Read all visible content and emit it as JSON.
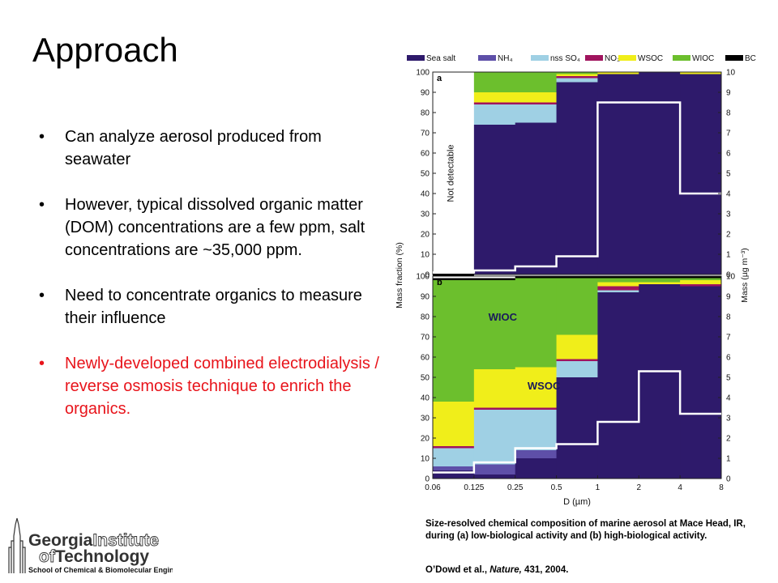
{
  "slide": {
    "title": "Approach",
    "bullets": [
      {
        "text": "Can analyze aerosol produced from seawater",
        "color": "#000000"
      },
      {
        "text": "However, typical dissolved organic matter (DOM) concentrations are a few ppm, salt concentrations are ~35,000 ppm.",
        "color": "#000000"
      },
      {
        "text": "Need to concentrate organics to measure their influence",
        "color": "#000000"
      },
      {
        "text": "Newly-developed combined electrodialysis / reverse osmosis technique to enrich the organics.",
        "color": "#e8141b"
      }
    ],
    "bullet_glyph": "•",
    "caption": "Size-resolved chemical composition of marine aerosol at Mace Head, IR, during (a) low-biological activity and (b) high-biological activity.",
    "citation": {
      "authors": "O’Dowd et al., ",
      "journal": "Nature,",
      "rest": " 431, 2004."
    },
    "logo": {
      "line1a": "Georgia",
      "line1b": "Institute",
      "line2a": "of",
      "line2b": "Technology",
      "line3": "School of Chemical & Biomolecular Engineering"
    }
  },
  "chart_data": {
    "type": "bar",
    "x_bin_edges": [
      0.06,
      0.125,
      0.25,
      0.5,
      1,
      2,
      4,
      8
    ],
    "x_tick_labels": [
      "0.06",
      "0.125",
      "0.25",
      "0.5",
      "1",
      "2",
      "4",
      "8"
    ],
    "xlabel": "D (µm)",
    "ylabel_left": "Mass fraction (%)",
    "ylabel_right": "Mass (µg m⁻³)",
    "left_ylim": [
      0,
      100
    ],
    "right_ylim": [
      0,
      10
    ],
    "left_ticks": [
      0,
      10,
      20,
      30,
      40,
      50,
      60,
      70,
      80,
      90,
      100
    ],
    "right_ticks": [
      0,
      1,
      2,
      3,
      4,
      5,
      6,
      7,
      8,
      9,
      10
    ],
    "series_order": [
      "Sea salt",
      "NH4",
      "nss SO4",
      "NO3",
      "WSOC",
      "WIOC",
      "BC"
    ],
    "legend": [
      {
        "key": "Sea salt",
        "label": "Sea salt",
        "color": "#2e1a6b"
      },
      {
        "key": "NH4",
        "label": "NH₄",
        "color": "#5e4fa8"
      },
      {
        "key": "nss SO4",
        "label": "nss SO₄",
        "color": "#9fd0e4"
      },
      {
        "key": "NO3",
        "label": "NO₃",
        "color": "#a0145e"
      },
      {
        "key": "WSOC",
        "label": "WSOC",
        "color": "#f0ee1a"
      },
      {
        "key": "WIOC",
        "label": "WIOC",
        "color": "#6cbf2d"
      },
      {
        "key": "BC",
        "label": "BC",
        "color": "#000000"
      }
    ],
    "panels": [
      {
        "label": "a",
        "not_detectable_text": "Not detectable",
        "not_detectable_bins": [
          0
        ],
        "fractions": {
          "Sea salt": [
            0,
            74,
            75,
            95,
            99,
            100,
            99
          ],
          "NH4": [
            0,
            0,
            0,
            0,
            0,
            0,
            0
          ],
          "nss SO4": [
            0,
            10,
            9,
            2,
            0,
            0,
            0
          ],
          "NO3": [
            0,
            1,
            1,
            1,
            0,
            0,
            0
          ],
          "WSOC": [
            0,
            5,
            5,
            1,
            1,
            0,
            1
          ],
          "WIOC": [
            0,
            10,
            10,
            1,
            0,
            0,
            0
          ],
          "BC": [
            0,
            0,
            0,
            0,
            0,
            0,
            0
          ]
        },
        "mass": [
          0.1,
          0.2,
          0.4,
          0.9,
          8.5,
          8.5,
          4.0
        ]
      },
      {
        "label": "b",
        "fractions": {
          "Sea salt": [
            4,
            2,
            10,
            50,
            92,
            96,
            95
          ],
          "NH4": [
            2,
            5,
            4,
            0,
            0,
            0,
            0
          ],
          "nss SO4": [
            9,
            27,
            20,
            8,
            1,
            0,
            0
          ],
          "NO3": [
            1,
            1,
            1,
            1,
            2,
            0,
            1
          ],
          "WSOC": [
            22,
            19,
            20,
            12,
            2,
            1,
            2
          ],
          "WIOC": [
            60,
            44,
            44,
            28,
            2,
            2,
            1
          ],
          "BC": [
            1,
            1,
            1,
            1,
            1,
            1,
            1
          ]
        },
        "mass": [
          0.3,
          0.8,
          1.5,
          1.7,
          2.8,
          5.3,
          3.2
        ]
      }
    ],
    "annotations": [
      {
        "text": "WIOC",
        "panel": 1,
        "x_bin": 1,
        "y": 78
      },
      {
        "text": "WSOC",
        "panel": 1,
        "x_bin": 2,
        "y": 44
      }
    ]
  }
}
